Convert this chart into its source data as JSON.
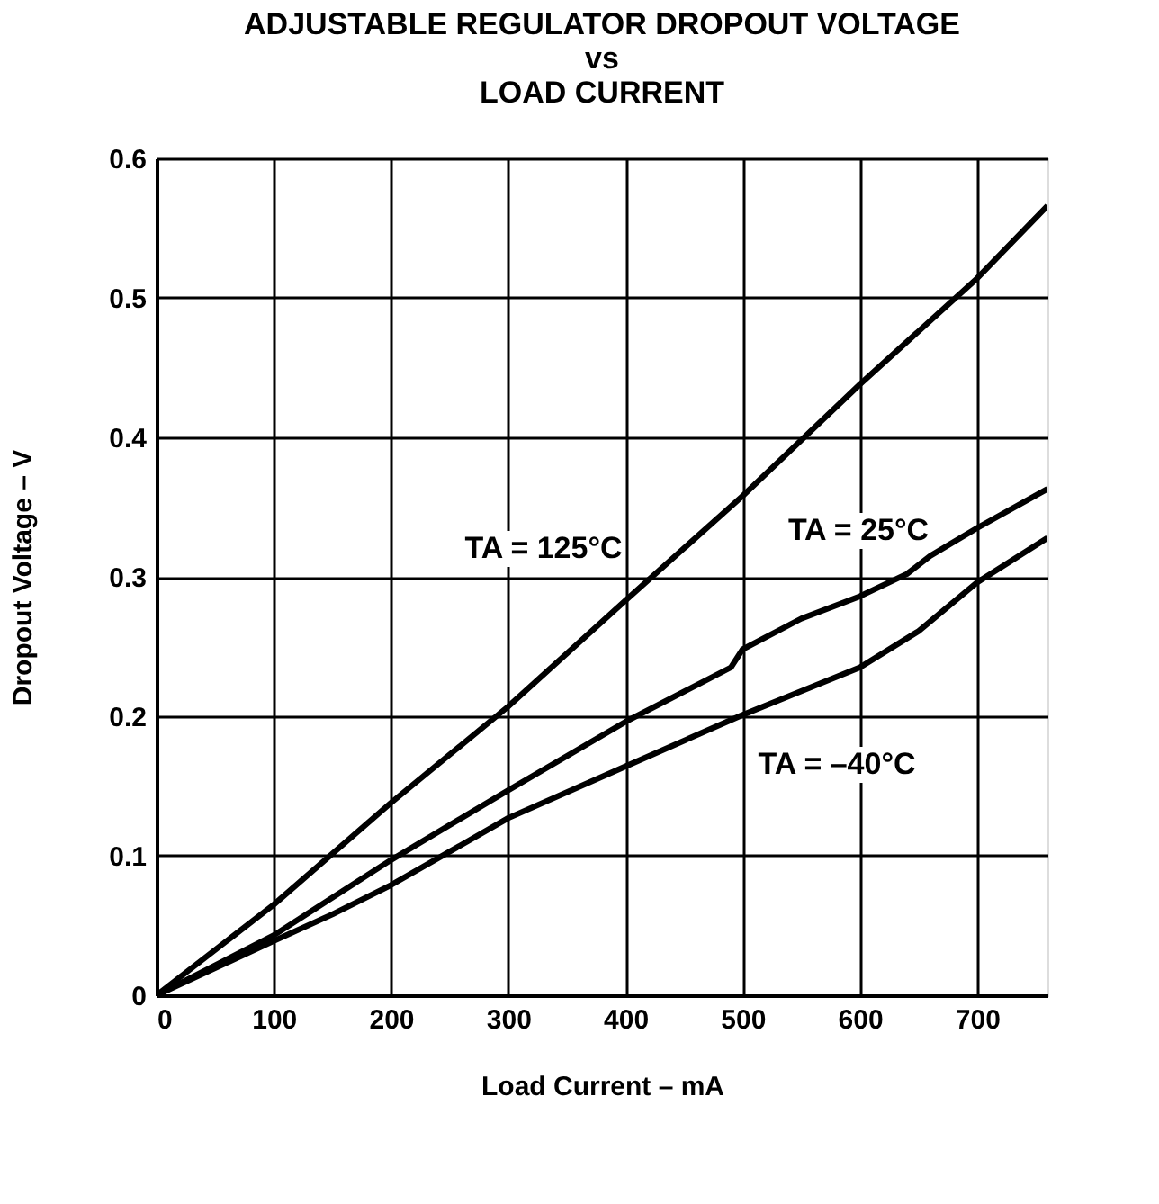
{
  "chart_data": {
    "type": "line",
    "title": [
      "ADJUSTABLE REGULATOR DROPOUT VOLTAGE",
      "vs",
      "LOAD CURRENT"
    ],
    "xlabel": "Load Current – mA",
    "ylabel": "Dropout Voltage – V",
    "xlim": [
      0,
      760
    ],
    "xticks": [
      0,
      100,
      200,
      300,
      400,
      500,
      600,
      700
    ],
    "ylim": [
      0,
      0.6
    ],
    "yticks": [
      0,
      0.1,
      0.2,
      0.3,
      0.4,
      0.5,
      0.6
    ],
    "grid": true,
    "legend": false,
    "line_style": "solid",
    "marker": "none",
    "series": [
      {
        "name": "TA = 125°C",
        "color": "#000000",
        "x": [
          0,
          100,
          200,
          300,
          400,
          500,
          600,
          700,
          760
        ],
        "values": [
          0,
          0.065,
          0.138,
          0.207,
          0.283,
          0.358,
          0.438,
          0.514,
          0.566
        ]
      },
      {
        "name": "TA = 25°C",
        "color": "#000000",
        "x": [
          0,
          100,
          200,
          300,
          400,
          490,
          500,
          550,
          600,
          640,
          660,
          700,
          760
        ],
        "values": [
          0,
          0.043,
          0.097,
          0.147,
          0.196,
          0.235,
          0.248,
          0.27,
          0.286,
          0.302,
          0.315,
          0.335,
          0.363
        ]
      },
      {
        "name": "TA = –40°C",
        "color": "#000000",
        "x": [
          0,
          100,
          150,
          200,
          300,
          400,
          500,
          600,
          650,
          700,
          760
        ],
        "values": [
          0,
          0.039,
          0.058,
          0.079,
          0.127,
          0.164,
          0.201,
          0.235,
          0.261,
          0.296,
          0.328
        ]
      }
    ]
  }
}
